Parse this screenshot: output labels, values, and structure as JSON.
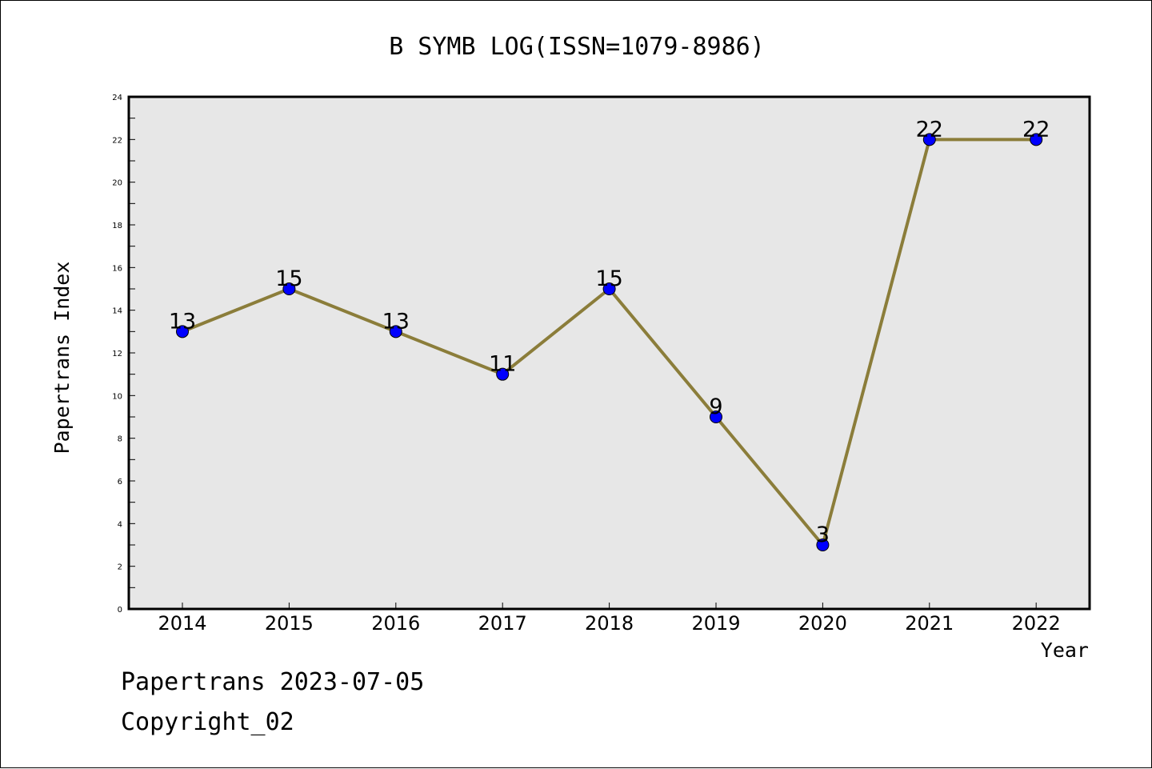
{
  "chart_data": {
    "type": "line",
    "title": "B SYMB LOG(ISSN=1079-8986)",
    "xlabel": "Year",
    "ylabel": "Papertrans Index",
    "categories": [
      "2014",
      "2015",
      "2016",
      "2017",
      "2018",
      "2019",
      "2020",
      "2021",
      "2022"
    ],
    "series": [
      {
        "values": [
          13,
          15,
          13,
          11,
          15,
          9,
          3,
          22,
          22
        ]
      }
    ],
    "data_labels": [
      "13",
      "15",
      "13",
      "11",
      "15",
      "9",
      "3",
      "22",
      "22"
    ],
    "ylim": [
      0,
      24
    ],
    "yticks": [
      0,
      2,
      4,
      6,
      8,
      10,
      12,
      14,
      16,
      18,
      20,
      22,
      24
    ],
    "ytick_labels": [
      "0",
      "2",
      "4",
      "6",
      "8",
      "10",
      "12",
      "14",
      "16",
      "18",
      "20",
      "22",
      "24"
    ],
    "grid": false,
    "colors": {
      "line": "#8b7d3a",
      "marker": "#0000ff",
      "plot_background": "#e7e7e7"
    }
  },
  "footer": {
    "line1": "Papertrans 2023-07-05",
    "line2": "Copyright_02"
  }
}
